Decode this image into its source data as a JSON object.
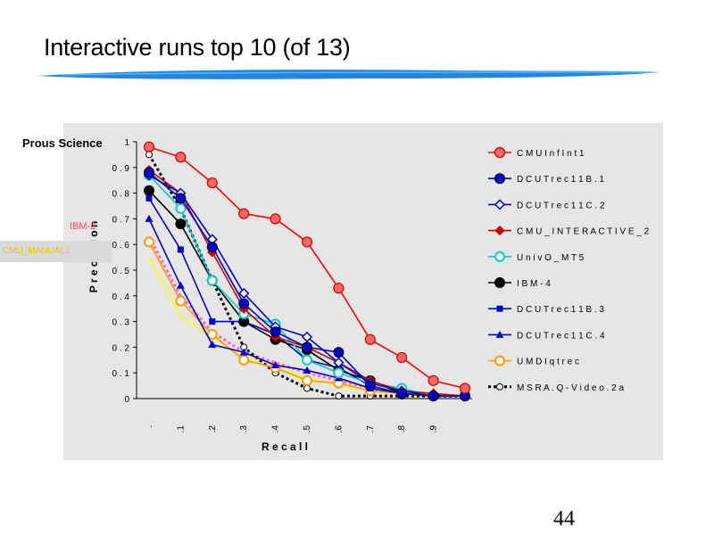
{
  "slide": {
    "title": "Interactive runs top 10 (of 13)",
    "page_number": "44"
  },
  "side_labels": {
    "prous": "Prous Science",
    "ibm2": "IBM-2",
    "cmu_manual": "CMU_MANUAL1"
  },
  "chart_data": {
    "type": "line",
    "title": "",
    "xlabel": "R e c a l l",
    "ylabel": "P r e c i s i o n",
    "x": [
      0,
      0.1,
      0.2,
      0.3,
      0.4,
      0.5,
      0.6,
      0.7,
      0.8,
      0.9,
      1.0
    ],
    "x_tick_labels": [
      ".",
      ".1",
      ".2",
      ".3",
      ".4",
      ".5",
      ".6",
      ".7",
      ".8",
      ".9",
      ""
    ],
    "y_tick_labels": [
      "0",
      "0 . 1",
      "0 . 2",
      "0 . 3",
      "0 . 4",
      "0 . 5",
      "0 . 6",
      "0 . 7",
      "0 . 8",
      "0 . 9",
      "1"
    ],
    "ylim": [
      0,
      1
    ],
    "grid": false,
    "legend_position": "right",
    "series": [
      {
        "name": "C M U I n f I n t 1",
        "color": "#ff0000",
        "marker": "circle-big",
        "dash": "solid",
        "values": [
          0.98,
          0.94,
          0.84,
          0.72,
          0.7,
          0.61,
          0.43,
          0.23,
          0.16,
          0.07,
          0.04
        ]
      },
      {
        "name": "D C U T r e c 1 1 B . 1",
        "color": "#0000cc",
        "marker": "circle-big",
        "dash": "solid",
        "values": [
          0.88,
          0.78,
          0.59,
          0.37,
          0.26,
          0.2,
          0.18,
          0.05,
          0.02,
          0.01,
          0.01
        ]
      },
      {
        "name": "D C U T r e c 1 1 C . 2",
        "color": "#0000cc",
        "marker": "diamond-open",
        "dash": "solid",
        "values": [
          0.87,
          0.8,
          0.62,
          0.41,
          0.28,
          0.24,
          0.14,
          0.06,
          0.03,
          0.01,
          0.01
        ]
      },
      {
        "name": "C M U _ I N T E R A C T I V E _ 2",
        "color": "#cc0000",
        "marker": "diamond",
        "dash": "solid",
        "values": [
          0.89,
          0.8,
          0.57,
          0.35,
          0.24,
          0.2,
          0.14,
          0.07,
          0.03,
          0.02,
          0.01
        ]
      },
      {
        "name": "U n i v O _ M T 5",
        "color": "#00cccc",
        "marker": "circle-open",
        "dash": "solid",
        "values": [
          0.87,
          0.74,
          0.46,
          0.33,
          0.29,
          0.15,
          0.1,
          0.06,
          0.04,
          0.01,
          0.01
        ]
      },
      {
        "name": "I B M - 4",
        "color": "#000000",
        "marker": "circle-big",
        "dash": "solid",
        "values": [
          0.81,
          0.68,
          0.46,
          0.3,
          0.23,
          0.19,
          0.11,
          0.07,
          0.02,
          0.01,
          0.01
        ]
      },
      {
        "name": "D C U T r e c 1 1 B . 3",
        "color": "#0000cc",
        "marker": "square",
        "dash": "solid",
        "values": [
          0.78,
          0.58,
          0.3,
          0.3,
          0.25,
          0.15,
          0.12,
          0.05,
          0.02,
          0.01,
          0.01
        ]
      },
      {
        "name": "D C U T r e c 1 1 C . 4",
        "color": "#0000cc",
        "marker": "triangle",
        "dash": "solid",
        "values": [
          0.7,
          0.44,
          0.21,
          0.18,
          0.13,
          0.11,
          0.08,
          0.04,
          0.02,
          0.01,
          0.01
        ]
      },
      {
        "name": "U M D I q t r e c",
        "color": "#ff9900",
        "marker": "circle-open",
        "dash": "solid",
        "values": [
          0.61,
          0.38,
          0.25,
          0.15,
          0.12,
          0.07,
          0.06,
          0.03,
          0.02,
          0.01,
          0.01
        ]
      },
      {
        "name": "M S R A . Q - V i d e o . 2 a",
        "color": "#000000",
        "marker": "circle-small-open",
        "dash": "dotted",
        "values": [
          0.95,
          0.74,
          0.46,
          0.2,
          0.1,
          0.04,
          0.01,
          0.01,
          0.01,
          0.01,
          0.01
        ]
      },
      {
        "name": "",
        "color": "#ff66cc",
        "marker": "none",
        "dash": "dotted",
        "values": [
          0.63,
          0.4,
          0.26,
          0.18,
          0.14,
          0.1,
          0.07,
          0.04,
          0.02,
          0.01,
          0.01
        ]
      },
      {
        "name": "",
        "color": "#ffff00",
        "marker": "none",
        "dash": "solid",
        "values": [
          0.55,
          0.32,
          0.24,
          0.16,
          0.12,
          0.08,
          0.05,
          0.03,
          0.01,
          0.01,
          0.01
        ]
      }
    ]
  }
}
